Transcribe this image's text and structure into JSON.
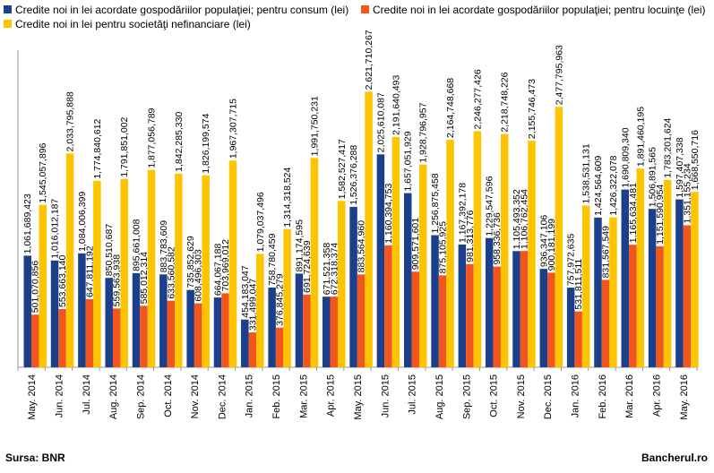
{
  "colors": {
    "consum": "#1b3f8b",
    "locuinte": "#f2561d",
    "societati": "#ffc400"
  },
  "legend": [
    {
      "label": "Credite noi in lei acordate gospodăriilor populaţiei; pentru consum (lei)",
      "color": "#1b3f8b"
    },
    {
      "label": "Credite noi in lei acordate gospodăriilor populaţiei; pentru locuinţe (lei)",
      "color": "#f2561d"
    },
    {
      "label": "Credite noi in lei pentru societăţi nefinanciare (lei)",
      "color": "#ffc400"
    }
  ],
  "footer": {
    "source": "Sursa: BNR",
    "brand": "Bancherul.ro"
  },
  "chart_data": {
    "type": "bar",
    "ylim": [
      0,
      3000000000
    ],
    "categories": [
      "May. 2014",
      "Jun. 2014",
      "Jul. 2014",
      "Aug. 2014",
      "Sep. 2014",
      "Oct. 2014",
      "Nov. 2014",
      "Dec. 2014",
      "Jan. 2015",
      "Feb. 2015",
      "Mar. 2015",
      "Apr. 2015",
      "May. 2015",
      "Jun. 2015",
      "Jul. 2015",
      "Aug. 2015",
      "Sep. 2015",
      "Oct. 2015",
      "Nov. 2015",
      "Dec. 2015",
      "Jan. 2016",
      "Feb. 2016",
      "Mar. 2016",
      "Apr. 2016",
      "May. 2016"
    ],
    "series": [
      {
        "name": "Credite noi in lei acordate gospodăriilor populaţiei; pentru consum (lei)",
        "color": "#1b3f8b",
        "values": [
          1061689423,
          1016012187,
          1084006399,
          850510687,
          895661008,
          883783609,
          735852629,
          664067188,
          454183047,
          758780459,
          891174595,
          671521358,
          1526376288,
          2025610087,
          1657051929,
          1256875458,
          1167392178,
          1229547596,
          1105493352,
          936347106,
          757972635,
          1424564609,
          1690809340,
          1506891565,
          1597407338
        ],
        "labels": [
          "1,061,689,423",
          "1,016,012,187",
          "1,084,006,399",
          "850,510,687",
          "895,661,008",
          "883,783,609",
          "735,852,629",
          "664,067,188",
          "454,183,047",
          "758,780,459",
          "891,174,595",
          "671,521,358",
          "1,526,376,288",
          "2,025,610,087",
          "1,657,051,929",
          "1,256,875,458",
          "1,167,392,178",
          "1,229,547,596",
          "1,105,493,352",
          "936,347,106",
          "757,972,635",
          "1,424,564,609",
          "1,690,809,340",
          "1,506,891,565",
          "1,597,407,338"
        ]
      },
      {
        "name": "Credite noi in lei acordate gospodăriilor populaţiei; pentru locuinţe (lei)",
        "color": "#f2561d",
        "values": [
          501070856,
          553663140,
          647811192,
          559563938,
          585012314,
          633560582,
          608496303,
          703969012,
          331499047,
          376845279,
          691724639,
          672318374,
          883564960,
          1160394753,
          909571601,
          875105925,
          981313776,
          958336736,
          1106762454,
          900181199,
          531811511,
          831567549,
          1165634481,
          1151590954,
          1351155234
        ],
        "labels": [
          "501,070,856",
          "553,663,140",
          "647,811,192",
          "559,563,938",
          "585,012,314",
          "633,560,582",
          "608,496,303",
          "703,969,012",
          "331,499,047",
          "376,845,279",
          "691,724,639",
          "672,318,374",
          "883,564,960",
          "1,160,394,753",
          "909,571,601",
          "875,105,925",
          "981,313,776",
          "958,336,736",
          "1,106,762,454",
          "900,181,199",
          "531,811,511",
          "831,567,549",
          "1,165,634,481",
          "1,151,590,954",
          "1,351,155,234"
        ]
      },
      {
        "name": "Credite noi in lei pentru societăţi nefinanciare (lei)",
        "color": "#ffc400",
        "values": [
          1545057896,
          2033795888,
          1774840612,
          1791851002,
          1877056789,
          1842285330,
          1826199574,
          1967307715,
          1079037496,
          1314318524,
          1991750231,
          1582527417,
          2621710267,
          2191640493,
          1928796957,
          2164748668,
          2246277426,
          2218748226,
          2155746473,
          2477795963,
          1538531131,
          1426322078,
          1891460195,
          1783201624,
          1668550716
        ],
        "labels": [
          "1,545,057,896",
          "2,033,795,888",
          "1,774,840,612",
          "1,791,851,002",
          "1,877,056,789",
          "1,842,285,330",
          "1,826,199,574",
          "1,967,307,715",
          "1,079,037,496",
          "1,314,318,524",
          "1,991,750,231",
          "1,582,527,417",
          "2,621,710,267",
          "2,191,640,493",
          "1,928,796,957",
          "2,164,748,668",
          "2,246,277,426",
          "2,218,748,226",
          "2,155,746,473",
          "2,477,795,963",
          "1,538,531,131",
          "1,426,322,078",
          "1,891,460,195",
          "1,783,201,624",
          "1,668,550,716"
        ]
      }
    ]
  }
}
